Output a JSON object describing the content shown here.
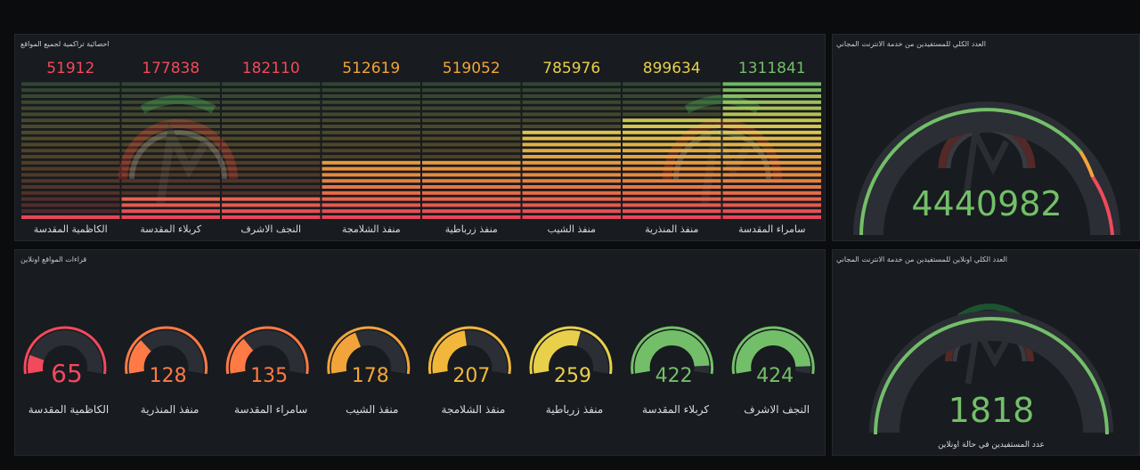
{
  "bars_panel": {
    "title": "احصائية تراكمية لجميع المواقع"
  },
  "gauges_panel": {
    "title": "قراءات المواقع اونلاين"
  },
  "total_panel": {
    "title": "العدد الكلي للمستفيدين من خدمة الانترنت المجاني",
    "value": "4440982"
  },
  "online_panel": {
    "title": "العدد الكلي اونلاين للمستفيدين من خدمة الانترنت المجاني",
    "value": "1818",
    "subtitle": "عدد المستفيدين في حالة اونلاين"
  },
  "colors": {
    "green": "#73bf69",
    "yellow": "#e8d04a",
    "orange": "#f2a43a",
    "red": "#f2495c",
    "track": "#2a2d33"
  },
  "chart_data": [
    {
      "type": "bar",
      "categories": [
        "الكاظمية المقدسة",
        "كربلاء المقدسة",
        "النجف الاشرف",
        "منفذ الشلامجة",
        "منفذ زرباطية",
        "منفذ الشيب",
        "منفذ المنذرية",
        "سامراء المقدسة"
      ],
      "values": [
        51912,
        177838,
        182110,
        512619,
        519052,
        785976,
        899634,
        1311841
      ],
      "value_labels": [
        "51912",
        "177838",
        "182110",
        "512619",
        "519052",
        "785976",
        "899634",
        "1311841"
      ],
      "value_colors": [
        "#f2495c",
        "#f2495c",
        "#f2495c",
        "#f2a43a",
        "#f2a43a",
        "#e8d04a",
        "#e8d04a",
        "#73bf69"
      ],
      "ylim": [
        0,
        1311841
      ]
    },
    {
      "type": "gauge",
      "categories": [
        "الكاظمية المقدسة",
        "منفذ المنذرية",
        "سامراء المقدسة",
        "منفذ الشيب",
        "منفذ الشلامجة",
        "منفذ زرباطية",
        "كربلاء المقدسة",
        "النجف الاشرف"
      ],
      "values": [
        65,
        128,
        135,
        178,
        207,
        259,
        422,
        424
      ],
      "value_labels": [
        "65",
        "128",
        "135",
        "178",
        "207",
        "259",
        "422",
        "424"
      ],
      "colors": [
        "#f2495c",
        "#ff7a45",
        "#ff7a45",
        "#f2a43a",
        "#f2b73a",
        "#e8d04a",
        "#73bf69",
        "#73bf69"
      ],
      "range": [
        0,
        450
      ]
    }
  ]
}
